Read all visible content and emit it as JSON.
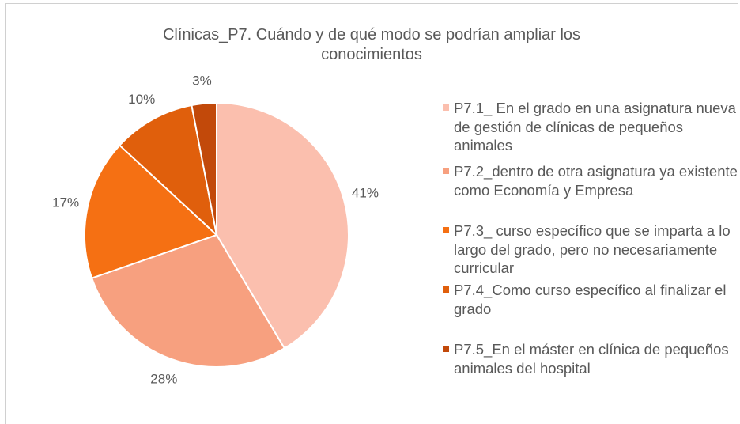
{
  "chart_data": {
    "type": "pie",
    "title": "Clínicas_P7. Cuándo y de qué modo se podrían ampliar los conocimientos",
    "categories": [
      "P7.1_  En el grado en una asignatura nueva de gestión de clínicas de pequeños animales",
      "P7.2_dentro de otra asignatura ya existente como Economía y Empresa",
      "P7.3_ curso específico que se imparta a lo largo del grado, pero no necesariamente curricular",
      "P7.4_Como curso específico al finalizar el grado",
      "P7.5_En el máster en clínica de pequeños animales del hospital"
    ],
    "values": [
      41,
      28,
      17,
      10,
      3
    ],
    "value_labels": [
      "41%",
      "28%",
      "17%",
      "10%",
      "3%"
    ],
    "colors": [
      "#fbbfae",
      "#f7a07f",
      "#f57013",
      "#e05f0c",
      "#c2490a"
    ],
    "legend": "right"
  }
}
